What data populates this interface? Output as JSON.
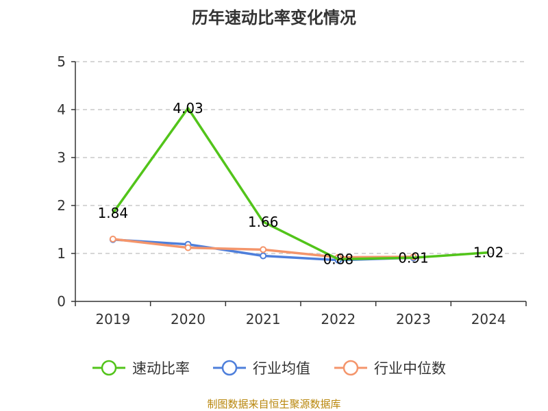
{
  "chart_data": {
    "type": "line",
    "title": "历年速动比率变化情况",
    "categories": [
      "2019",
      "2020",
      "2021",
      "2022",
      "2023",
      "2024"
    ],
    "ylim": [
      0,
      5
    ],
    "yticks": [
      0,
      1,
      2,
      3,
      4,
      5
    ],
    "grid": true,
    "legend_position": "bottom",
    "series": [
      {
        "name": "速动比率",
        "color": "#52c41a",
        "values": [
          1.84,
          4.03,
          1.66,
          0.88,
          0.91,
          1.02
        ],
        "labels": [
          "1.84",
          "4.03",
          "1.66",
          "0.88",
          "0.91",
          "1.02"
        ]
      },
      {
        "name": "行业均值",
        "color": "#4e7fdb",
        "values": [
          1.29,
          1.19,
          0.95,
          0.86,
          0.91,
          null
        ]
      },
      {
        "name": "行业中位数",
        "color": "#f4956b",
        "values": [
          1.3,
          1.12,
          1.08,
          0.92,
          0.93,
          null
        ]
      }
    ],
    "source": "制图数据来自恒生聚源数据库"
  }
}
